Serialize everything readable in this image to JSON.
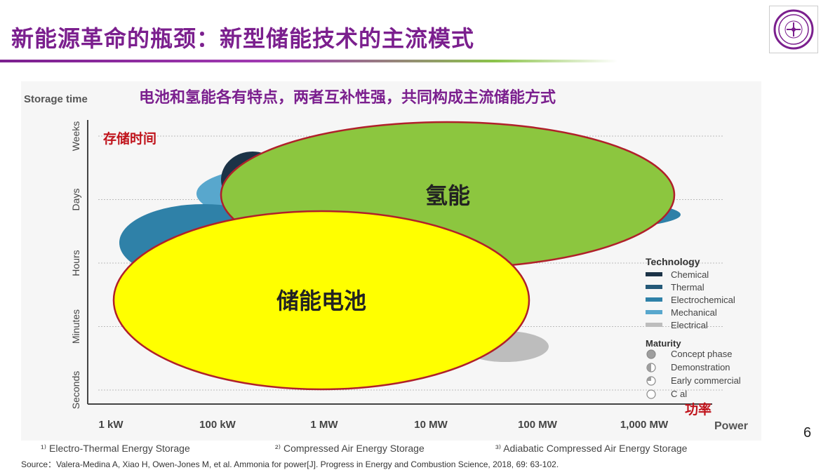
{
  "slide": {
    "title": "新能源革命的瓶颈：新型储能技术的主流模式",
    "page_number": "6",
    "source": "Source：Valera-Medina A, Xiao H, Owen-Jones M, et al. Ammonia for power[J]. Progress in Energy and Combustion Science, 2018, 69: 63-102."
  },
  "colors": {
    "title": "#7b1f8e",
    "headline": "#7b1f8e",
    "annotation_red": "#c0141c",
    "hydrogen_fill": "#8cc63f",
    "battery_fill": "#ffff00",
    "outline": "#b0202a"
  },
  "chart_data": {
    "type": "scatter",
    "headline": "电池和氢能各有特点，两者互补性强，共同构成主流储能方式",
    "ylabel": "Storage time",
    "xlabel": "Power",
    "x_ticks": [
      "1 kW",
      "100 kW",
      "1 MW",
      "10 MW",
      "100 MW",
      "1,000 MW"
    ],
    "y_ticks": [
      "Seconds",
      "Minutes",
      "Hours",
      "Days",
      "Weeks"
    ],
    "grid": true,
    "y_annotation": "存储时间",
    "x_annotation": "功率",
    "regions": [
      {
        "label": "氢能",
        "x_range": [
          "100 kW",
          "1,000 MW"
        ],
        "y_range": [
          "Hours",
          "Weeks"
        ],
        "color": "#8cc63f"
      },
      {
        "label": "储能电池",
        "x_range": [
          "1 kW",
          "100 MW"
        ],
        "y_range": [
          "Seconds",
          "Hours"
        ],
        "color": "#ffff00"
      }
    ],
    "legend": {
      "placement": "right",
      "technology_title": "Technology",
      "technology": [
        {
          "name": "Chemical",
          "color": "#1c3347"
        },
        {
          "name": "Thermal",
          "color": "#245978"
        },
        {
          "name": "Electrochemical",
          "color": "#2f81a8"
        },
        {
          "name": "Mechanical",
          "color": "#58a7cd"
        },
        {
          "name": "Electrical",
          "color": "#bdbdbd"
        }
      ],
      "maturity_title": "Maturity",
      "maturity": [
        "Concept phase",
        "Demonstration",
        "Early commercial",
        "C          al"
      ]
    },
    "footnotes": [
      "¹⁾ Electro-Thermal Energy Storage",
      "²⁾ Compressed Air Energy Storage",
      "³⁾ Adiabatic Compressed Air Energy Storage"
    ]
  }
}
